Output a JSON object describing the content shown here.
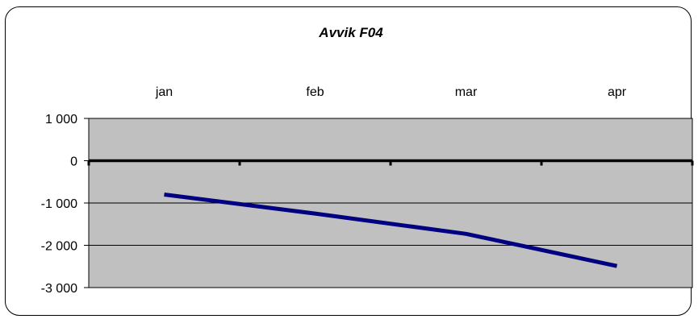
{
  "chart_data": {
    "type": "line",
    "title": "Avvik F04",
    "categories": [
      "jan",
      "feb",
      "mar",
      "apr"
    ],
    "y_tick_labels": [
      "1 000",
      "0",
      "-1 000",
      "-2 000",
      "-3 000"
    ],
    "y_ticks": [
      1000,
      0,
      -1000,
      -2000,
      -3000
    ],
    "ylim": [
      -3000,
      1000
    ],
    "grid": true,
    "legend": "none",
    "series": [
      {
        "values": [
          -800,
          -1250,
          -1730,
          -2490
        ]
      }
    ],
    "colors": {
      "plot_background": "#c0c0c0",
      "line": "#000080",
      "zero_axis": "#000000",
      "gridline": "#000000"
    }
  }
}
